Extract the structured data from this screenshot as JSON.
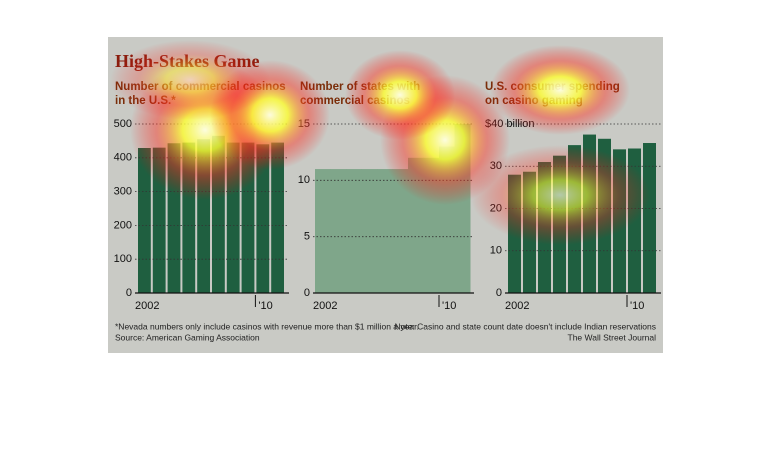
{
  "header": {
    "title": "High-Stakes Game"
  },
  "chart_data": [
    {
      "type": "bar",
      "title_lines": [
        "Number of commercial casinos",
        "in the U.S.*"
      ],
      "categories": [
        "2002",
        null,
        null,
        null,
        null,
        null,
        null,
        null,
        "'10",
        null
      ],
      "values": [
        429,
        430,
        443,
        445,
        455,
        465,
        445,
        445,
        440,
        445
      ],
      "color": "#1f5f40",
      "ylim": [
        0,
        500
      ],
      "yticks": [
        0,
        100,
        200,
        300,
        400,
        500
      ],
      "grid": true
    },
    {
      "type": "step",
      "title_lines": [
        "Number of states with",
        "commercial casinos"
      ],
      "categories": [
        "2002",
        null,
        null,
        null,
        null,
        null,
        null,
        null,
        "'10",
        null
      ],
      "values": [
        11,
        11,
        11,
        11,
        11,
        11,
        12,
        12,
        13,
        15
      ],
      "color": "#7fa68a",
      "ylim": [
        0,
        15
      ],
      "yticks": [
        0,
        5,
        10,
        15
      ],
      "grid": true
    },
    {
      "type": "bar",
      "title_lines": [
        "U.S. consumer spending",
        "on casino gaming"
      ],
      "categories": [
        "2002",
        null,
        null,
        null,
        null,
        null,
        null,
        null,
        "'10",
        null
      ],
      "values": [
        28,
        28.7,
        31,
        32.5,
        35,
        37.5,
        36.5,
        34,
        34.2,
        35.5
      ],
      "color": "#1f5f40",
      "ylim": [
        0,
        40
      ],
      "yticks": [
        0,
        10,
        20,
        30,
        {
          "value": 40,
          "label": "$40 billion"
        }
      ],
      "grid": true
    }
  ],
  "footer": {
    "note_left": "*Nevada numbers only include casinos with revenue more than $1 million a year.",
    "source": "Source: American Gaming Association",
    "note_right": "Note: Casino and state count date doesn't include Indian reservations",
    "credit": "The Wall Street Journal"
  }
}
